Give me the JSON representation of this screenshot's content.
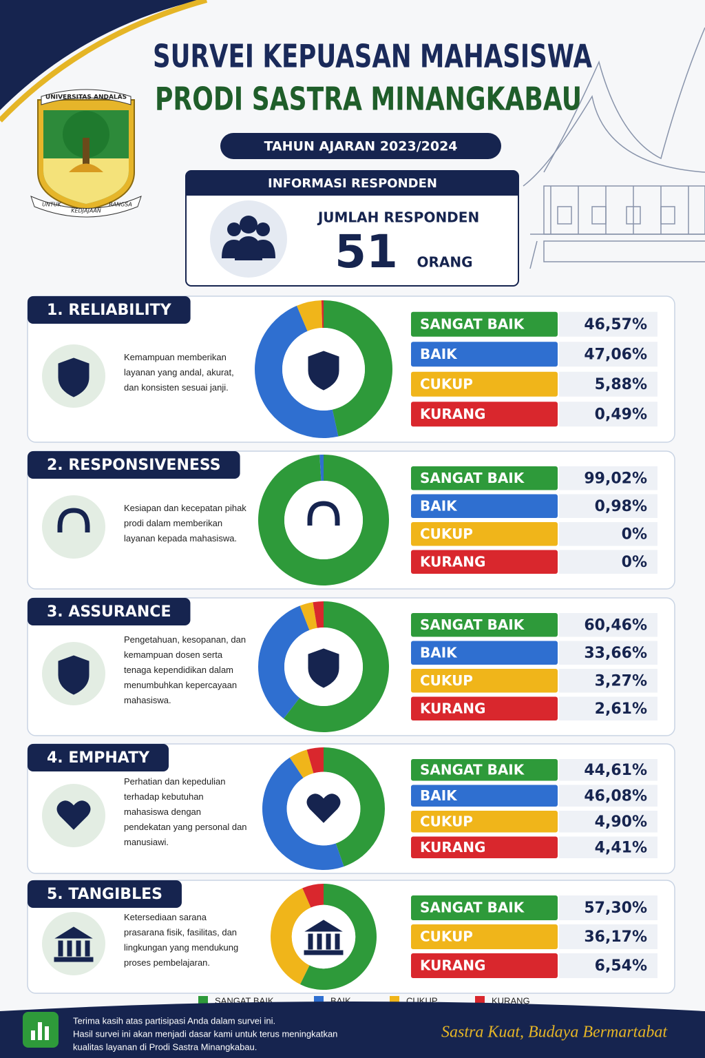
{
  "header": {
    "title_line1": "SURVEI KEPUASAN MAHASISWA",
    "title_line2": "PRODI SASTRA MINANGKABAU",
    "academic_year": "TAHUN AJARAN 2023/2024",
    "logo_text_top": "UNIVERSITAS ANDALAS",
    "logo_text_bottom": [
      "UNTUK",
      "KEDJAJAAN",
      "BANGSA"
    ]
  },
  "respondents": {
    "heading": "INFORMASI RESPONDEN",
    "label": "JUMLAH RESPONDEN",
    "count": 51,
    "unit": "ORANG"
  },
  "chart_data": [
    {
      "type": "donut",
      "title": "1. RELIABILITY",
      "description": "Kemampuan memberikan layanan yang andal, akurat, dan konsisten sesuai janji.",
      "categories": [
        "SANGAT BAIK",
        "BAIK",
        "CUKUP",
        "KURANG"
      ],
      "values": [
        46.57,
        47.06,
        5.88,
        0.49
      ],
      "value_labels": [
        "46,57%",
        "47,06%",
        "5,88%",
        "0,49%"
      ],
      "colors": [
        "#2e9a3a",
        "#2f6fd0",
        "#f0b51a",
        "#d9272d"
      ]
    },
    {
      "type": "donut",
      "title": "2. RESPONSIVENESS",
      "description": "Kesiapan dan kecepatan pihak prodi dalam memberikan layanan kepada mahasiswa.",
      "categories": [
        "SANGAT BAIK",
        "BAIK",
        "CUKUP",
        "KURANG"
      ],
      "values": [
        99.02,
        0.98,
        0,
        0
      ],
      "value_labels": [
        "99,02%",
        "0,98%",
        "0%",
        "0%"
      ],
      "colors": [
        "#2e9a3a",
        "#2f6fd0",
        "#f0b51a",
        "#d9272d"
      ]
    },
    {
      "type": "donut",
      "title": "3. ASSURANCE",
      "description": "Pengetahuan, kesopanan, dan kemampuan dosen serta tenaga kependidikan dalam menumbuhkan kepercayaan mahasiswa.",
      "categories": [
        "SANGAT BAIK",
        "BAIK",
        "CUKUP",
        "KURANG"
      ],
      "values": [
        60.46,
        33.66,
        3.27,
        2.61
      ],
      "value_labels": [
        "60,46%",
        "33,66%",
        "3,27%",
        "2,61%"
      ],
      "colors": [
        "#2e9a3a",
        "#2f6fd0",
        "#f0b51a",
        "#d9272d"
      ]
    },
    {
      "type": "donut",
      "title": "4. EMPHATY",
      "description": "Perhatian dan kepedulian terhadap kebutuhan mahasiswa dengan pendekatan yang personal dan manusiawi.",
      "categories": [
        "SANGAT BAIK",
        "BAIK",
        "CUKUP",
        "KURANG"
      ],
      "values": [
        44.61,
        46.08,
        4.9,
        4.41
      ],
      "value_labels": [
        "44,61%",
        "46,08%",
        "4,90%",
        "4,41%"
      ],
      "colors": [
        "#2e9a3a",
        "#2f6fd0",
        "#f0b51a",
        "#d9272d"
      ]
    },
    {
      "type": "donut",
      "title": "5. TANGIBLES",
      "description": "Ketersediaan sarana prasarana fisik, fasilitas, dan lingkungan yang mendukung proses pembelajaran.",
      "categories": [
        "SANGAT BAIK",
        "CUKUP",
        "KURANG"
      ],
      "values": [
        57.3,
        36.17,
        6.54
      ],
      "value_labels": [
        "57,30%",
        "36,17%",
        "6,54%"
      ],
      "colors": [
        "#2e9a3a",
        "#f0b51a",
        "#d9272d"
      ]
    }
  ],
  "legend": [
    {
      "label": "SANGAT BAIK",
      "color": "#2e9a3a"
    },
    {
      "label": "BAIK",
      "color": "#2f6fd0"
    },
    {
      "label": "CUKUP",
      "color": "#f0b51a"
    },
    {
      "label": "KURANG",
      "color": "#d9272d"
    }
  ],
  "footer": {
    "message": [
      "Terima kasih atas partisipasi Anda dalam survei ini.",
      "Hasil survei ini akan menjadi dasar kami untuk terus meningkatkan",
      "kualitas layanan di Prodi Sastra Minangkabau."
    ],
    "slogan": "Sastra Kuat, Budaya Bermartabat"
  }
}
